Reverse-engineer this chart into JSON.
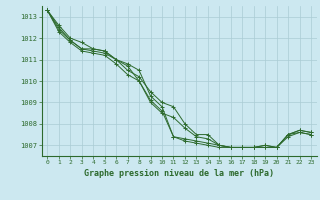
{
  "title": "Graphe pression niveau de la mer (hPa)",
  "background_color": "#cce8f0",
  "grid_color": "#aaccd4",
  "line_color": "#2d6a2d",
  "xlim": [
    -0.5,
    23.5
  ],
  "ylim": [
    1006.5,
    1013.5
  ],
  "yticks": [
    1007,
    1008,
    1009,
    1010,
    1011,
    1012,
    1013
  ],
  "xticks": [
    0,
    1,
    2,
    3,
    4,
    5,
    6,
    7,
    8,
    9,
    10,
    11,
    12,
    13,
    14,
    15,
    16,
    17,
    18,
    19,
    20,
    21,
    22,
    23
  ],
  "series": [
    [
      1013.3,
      1012.6,
      1012.0,
      1011.8,
      1011.5,
      1011.4,
      1011.0,
      1010.8,
      1010.5,
      1009.3,
      1008.8,
      1007.4,
      1007.3,
      1007.2,
      1007.1,
      1007.0,
      1006.9,
      1006.9,
      1006.9,
      1007.0,
      1006.9,
      1007.5,
      1007.7,
      1007.6
    ],
    [
      1013.3,
      1012.5,
      1011.9,
      1011.5,
      1011.4,
      1011.3,
      1011.0,
      1010.7,
      1010.0,
      1009.1,
      1008.6,
      1007.4,
      1007.2,
      1007.1,
      1007.0,
      1006.9,
      1006.9,
      1006.9,
      1006.9,
      1006.9,
      1006.9,
      1007.5,
      1007.6,
      1007.5
    ],
    [
      1013.3,
      1012.4,
      1011.9,
      1011.5,
      1011.5,
      1011.4,
      1011.0,
      1010.5,
      1010.2,
      1009.5,
      1009.0,
      1008.8,
      1008.0,
      1007.5,
      1007.5,
      1007.0,
      1006.9,
      1006.9,
      1006.9,
      1007.0,
      1006.9,
      1007.5,
      1007.7,
      1007.6
    ],
    [
      1013.3,
      1012.3,
      1011.8,
      1011.4,
      1011.3,
      1011.2,
      1010.8,
      1010.3,
      1010.0,
      1009.0,
      1008.5,
      1008.3,
      1007.8,
      1007.4,
      1007.3,
      1007.0,
      1006.9,
      1006.9,
      1006.9,
      1006.9,
      1006.9,
      1007.4,
      1007.6,
      1007.5
    ]
  ]
}
